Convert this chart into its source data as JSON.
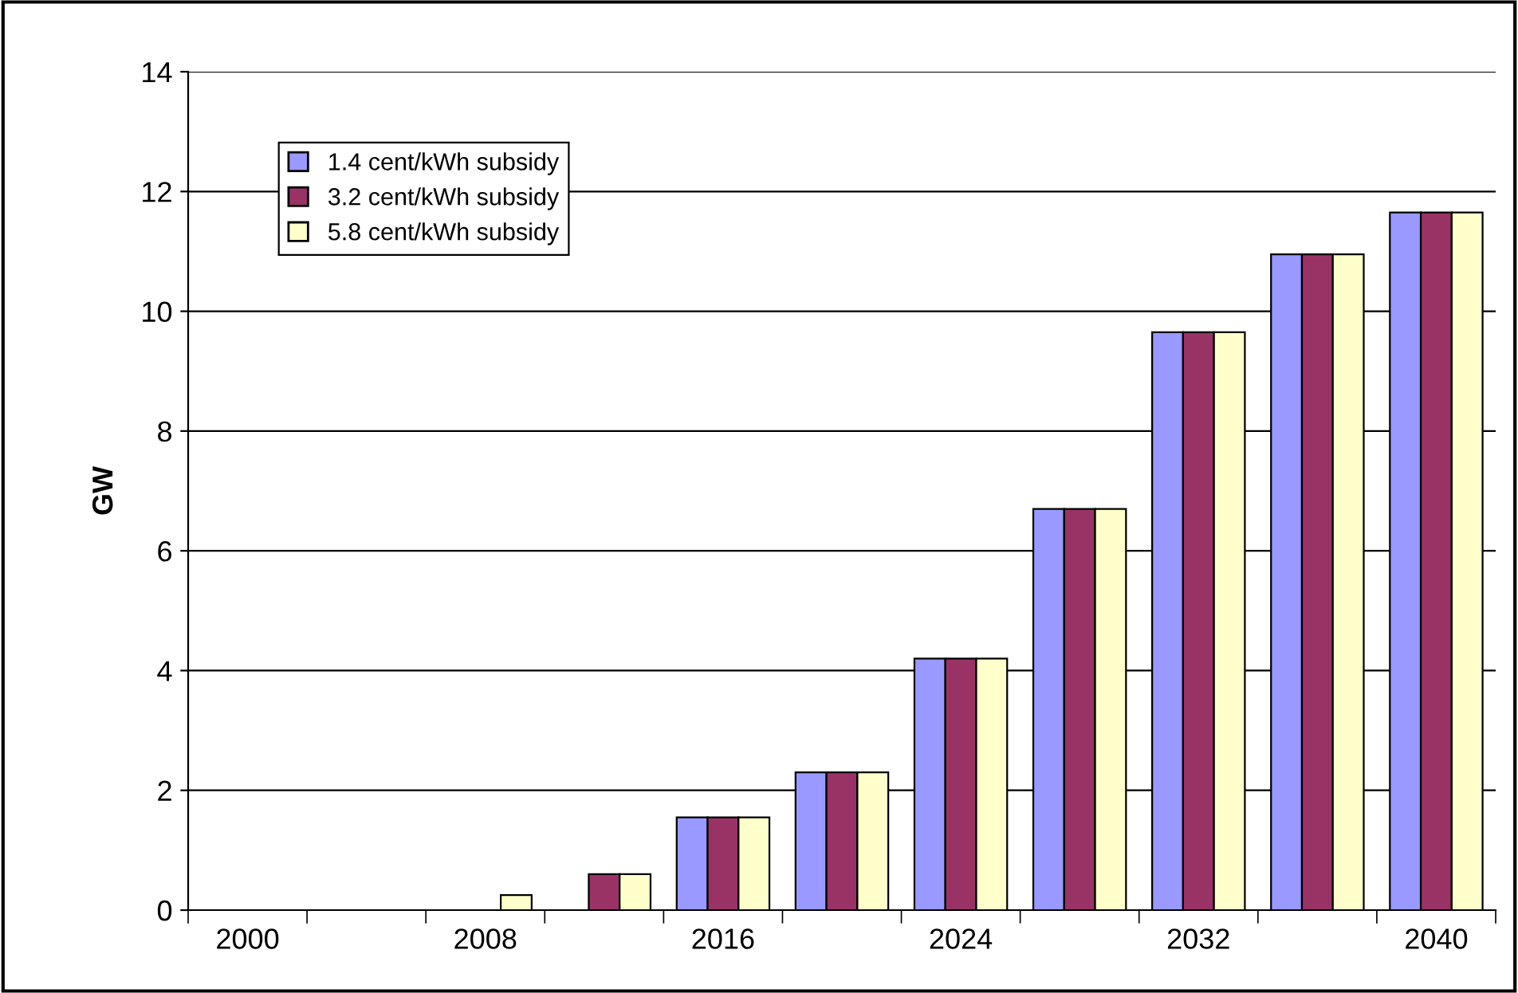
{
  "chart_data": {
    "type": "bar",
    "ylabel": "GW",
    "categories": [
      "2000",
      null,
      "2008",
      null,
      "2016",
      null,
      "2024",
      null,
      "2032",
      null,
      "2040"
    ],
    "series": [
      {
        "name": "1.4 cent/kWh subsidy",
        "color": "#9999ff",
        "values": [
          0,
          0,
          0,
          0,
          1.55,
          2.3,
          4.2,
          6.7,
          9.65,
          10.95,
          11.65
        ]
      },
      {
        "name": "3.2 cent/kWh subsidy",
        "color": "#993366",
        "values": [
          0,
          0,
          0,
          0.6,
          1.55,
          2.3,
          4.2,
          6.7,
          9.65,
          10.95,
          11.65
        ]
      },
      {
        "name": "5.8 cent/kWh subsidy",
        "color": "#ffffcc",
        "values": [
          0,
          0,
          0.25,
          0.6,
          1.55,
          2.3,
          4.2,
          6.7,
          9.65,
          10.95,
          11.65
        ]
      }
    ],
    "ylim": [
      0,
      14
    ],
    "yticks": [
      0,
      2,
      4,
      6,
      8,
      10,
      12,
      14
    ],
    "grid": "y",
    "legend": "top left"
  }
}
